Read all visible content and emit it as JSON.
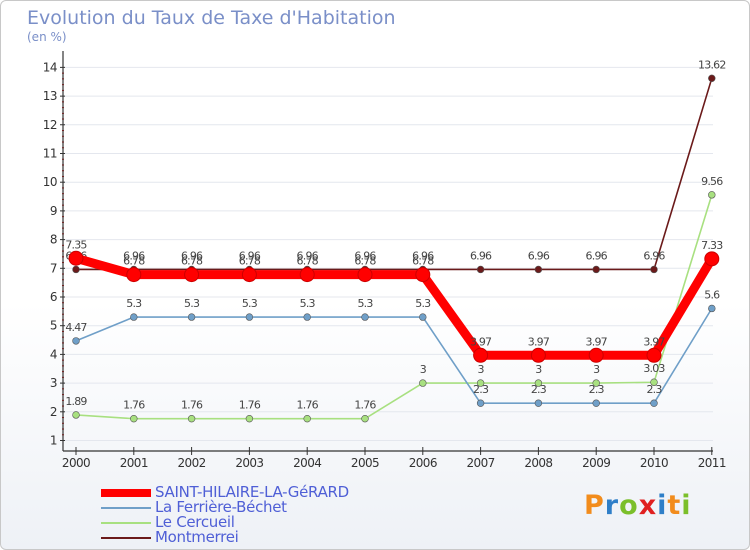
{
  "chart_data": {
    "type": "line",
    "title": "Evolution du Taux de Taxe d'Habitation",
    "subtitle": "(en %)",
    "x": [
      "2000",
      "2001",
      "2002",
      "2003",
      "2004",
      "2005",
      "2006",
      "2007",
      "2008",
      "2009",
      "2010",
      "2011"
    ],
    "ylim": [
      1,
      14
    ],
    "yticks": [
      "1",
      "2",
      "3",
      "4",
      "5",
      "6",
      "7",
      "8",
      "9",
      "10",
      "11",
      "12",
      "13",
      "14"
    ],
    "series": [
      {
        "name": "Montmerrei",
        "color": "#6b1a1a",
        "values": [
          6.96,
          6.96,
          6.96,
          6.96,
          6.96,
          6.96,
          6.96,
          6.96,
          6.96,
          6.96,
          6.96,
          13.62
        ],
        "labels": [
          "6.96",
          "6.96",
          "6.96",
          "6.96",
          "6.96",
          "6.96",
          "6.96",
          "6.96",
          "6.96",
          "6.96",
          "6.96",
          "13.62"
        ]
      },
      {
        "name": "Le Cercueil",
        "color": "#a8e080",
        "values": [
          1.89,
          1.76,
          1.76,
          1.76,
          1.76,
          1.76,
          3,
          3,
          3,
          3,
          3.03,
          9.56
        ],
        "labels": [
          "1.89",
          "1.76",
          "1.76",
          "1.76",
          "1.76",
          "1.76",
          "3",
          "3",
          "3",
          "3",
          "3.03",
          "9.56"
        ]
      },
      {
        "name": "La Ferrière-Béchet",
        "color": "#6f9fc8",
        "values": [
          4.47,
          5.3,
          5.3,
          5.3,
          5.3,
          5.3,
          5.3,
          2.3,
          2.3,
          2.3,
          2.3,
          5.6
        ],
        "labels": [
          "4.47",
          "5.3",
          "5.3",
          "5.3",
          "5.3",
          "5.3",
          "5.3",
          "2.3",
          "2.3",
          "2.3",
          "2.3",
          "5.6"
        ]
      },
      {
        "name": "SAINT-HILAIRE-LA-GéRARD",
        "color": "#ff0000",
        "values": [
          7.35,
          6.78,
          6.78,
          6.78,
          6.78,
          6.78,
          6.78,
          3.97,
          3.97,
          3.97,
          3.97,
          7.33
        ],
        "labels": [
          "7.35",
          "6.78",
          "6.78",
          "6.78",
          "6.78",
          "6.78",
          "6.78",
          "3.97",
          "3.97",
          "3.97",
          "3.97",
          "7.33"
        ]
      }
    ],
    "legend": [
      "SAINT-HILAIRE-LA-GéRARD",
      "La Ferrière-Béchet",
      "Le Cercueil",
      "Montmerrei"
    ]
  },
  "logo": {
    "letters": [
      "P",
      "r",
      "o",
      "x",
      "i",
      "t",
      "i"
    ]
  }
}
